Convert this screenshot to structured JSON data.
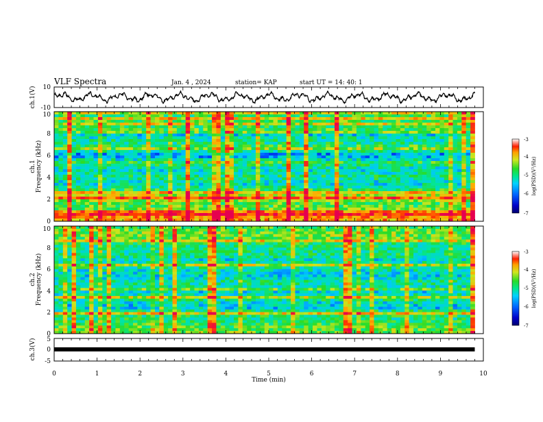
{
  "header": {
    "title": "VLF Spectra",
    "date": "Jan. 4 , 2024",
    "station": "station= KAP",
    "start": "start  UT =  14: 40: 1"
  },
  "chart_data": [
    {
      "type": "line",
      "ylabel": "ch.1(V)",
      "ylim": [
        -10,
        10
      ],
      "yticks": [
        "10",
        "-10"
      ],
      "xlim": [
        0,
        10
      ],
      "grid": false,
      "note_values": "noisy waveform oscillating roughly between -5 and 5 V across 0-9.8 min",
      "x_end": 9.8
    },
    {
      "type": "heatmap",
      "ylabel": "ch.1",
      "ylabel2": "Frequency (kHz)",
      "ylim": [
        0,
        10
      ],
      "yticks": [
        "0",
        "2",
        "4",
        "6",
        "8",
        "10"
      ],
      "xlim": [
        0,
        10
      ],
      "x_end": 9.8,
      "colorbar": {
        "label": "log(PSD)(V²/Hz)",
        "range": [
          -7,
          -3
        ],
        "ticks": [
          "-3",
          "-4",
          "-5",
          "-6",
          "-7"
        ]
      },
      "bands": [
        {
          "freq": 0.2,
          "level": 0.75
        },
        {
          "freq": 0.5,
          "level": 0.8
        },
        {
          "freq": 0.9,
          "level": 0.62
        },
        {
          "freq": 1.1,
          "level": 0.55
        },
        {
          "freq": 1.6,
          "level": 0.48
        },
        {
          "freq": 2.2,
          "level": 0.68
        },
        {
          "freq": 2.6,
          "level": 0.55
        },
        {
          "freq": 3.0,
          "level": 0.42
        },
        {
          "freq": 3.5,
          "level": 0.3
        },
        {
          "freq": 4.0,
          "level": 0.42
        },
        {
          "freq": 4.5,
          "level": 0.33
        },
        {
          "freq": 5.0,
          "level": 0.35
        },
        {
          "freq": 5.3,
          "level": 0.5
        },
        {
          "freq": 5.8,
          "level": 0.25
        },
        {
          "freq": 6.2,
          "level": 0.22
        },
        {
          "freq": 6.6,
          "level": 0.58
        },
        {
          "freq": 7.0,
          "level": 0.42
        },
        {
          "freq": 7.6,
          "level": 0.35
        },
        {
          "freq": 8.0,
          "level": 0.28
        },
        {
          "freq": 8.4,
          "level": 0.5
        },
        {
          "freq": 8.8,
          "level": 0.45
        },
        {
          "freq": 9.3,
          "level": 0.5
        },
        {
          "freq": 9.8,
          "level": 0.45
        }
      ]
    },
    {
      "type": "heatmap",
      "ylabel": "ch.2",
      "ylabel2": "Frequency (kHz)",
      "ylim": [
        0,
        10
      ],
      "yticks": [
        "0",
        "2",
        "4",
        "6",
        "8",
        "10"
      ],
      "xlim": [
        0,
        10
      ],
      "x_end": 9.8,
      "colorbar": {
        "label": "log(PSD)(V²/Hz)",
        "range": [
          -7,
          -3
        ],
        "ticks": [
          "-3",
          "-4",
          "-5",
          "-6",
          "-7"
        ]
      },
      "bands": [
        {
          "freq": 0.2,
          "level": 0.55
        },
        {
          "freq": 0.6,
          "level": 0.5
        },
        {
          "freq": 1.0,
          "level": 0.45
        },
        {
          "freq": 1.5,
          "level": 0.4
        },
        {
          "freq": 1.9,
          "level": 0.5
        },
        {
          "freq": 2.4,
          "level": 0.28
        },
        {
          "freq": 2.8,
          "level": 0.3
        },
        {
          "freq": 3.3,
          "level": 0.45
        },
        {
          "freq": 3.8,
          "level": 0.3
        },
        {
          "freq": 4.3,
          "level": 0.35
        },
        {
          "freq": 4.8,
          "level": 0.4
        },
        {
          "freq": 5.3,
          "level": 0.3
        },
        {
          "freq": 5.8,
          "level": 0.32
        },
        {
          "freq": 6.3,
          "level": 0.45
        },
        {
          "freq": 6.8,
          "level": 0.3
        },
        {
          "freq": 7.3,
          "level": 0.4
        },
        {
          "freq": 7.8,
          "level": 0.38
        },
        {
          "freq": 8.3,
          "level": 0.42
        },
        {
          "freq": 8.7,
          "level": 0.5
        },
        {
          "freq": 9.2,
          "level": 0.55
        },
        {
          "freq": 9.7,
          "level": 0.5
        }
      ]
    },
    {
      "type": "line",
      "ylabel": "ch.3(V)",
      "ylim": [
        -5,
        5
      ],
      "yticks": [
        "5",
        "0",
        "-5"
      ],
      "xlim": [
        0,
        10
      ],
      "x_end": 9.8,
      "constant_level": 0,
      "xlabel": "Time  (min)",
      "xticks": [
        "0",
        "1",
        "2",
        "3",
        "4",
        "5",
        "6",
        "7",
        "8",
        "9",
        "10"
      ]
    }
  ],
  "colors": {
    "line": "#000000",
    "colormap": [
      "#0000b4",
      "#0050ff",
      "#00c8ff",
      "#00e6a0",
      "#28dc28",
      "#c8e61e",
      "#ffaa00",
      "#ff3c00",
      "#e60050"
    ]
  }
}
